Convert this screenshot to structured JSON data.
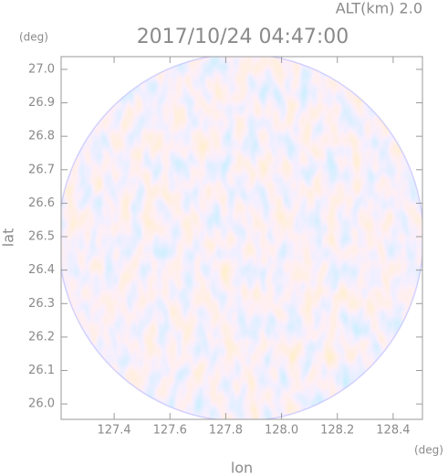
{
  "chart_data": {
    "type": "image",
    "title": "2017/10/24 04:47:00",
    "subtitle": "ALT(km) 2.0",
    "x_label": "lon",
    "y_label": "lat",
    "x_unit": "(deg)",
    "y_unit": "(deg)",
    "xlim": [
      127.21,
      128.505
    ],
    "ylim": [
      25.954,
      27.038
    ],
    "xticks": [
      127.4,
      127.6,
      127.8,
      {
        "value": 128,
        "label": "128.0"
      },
      128.2,
      128.4
    ],
    "yticks": [
      {
        "value": 26,
        "label": "26.0"
      },
      26.1,
      26.2,
      26.3,
      26.4,
      26.5,
      26.6,
      26.7,
      26.8,
      26.9,
      {
        "value": 27,
        "label": "27.0"
      }
    ]
  }
}
